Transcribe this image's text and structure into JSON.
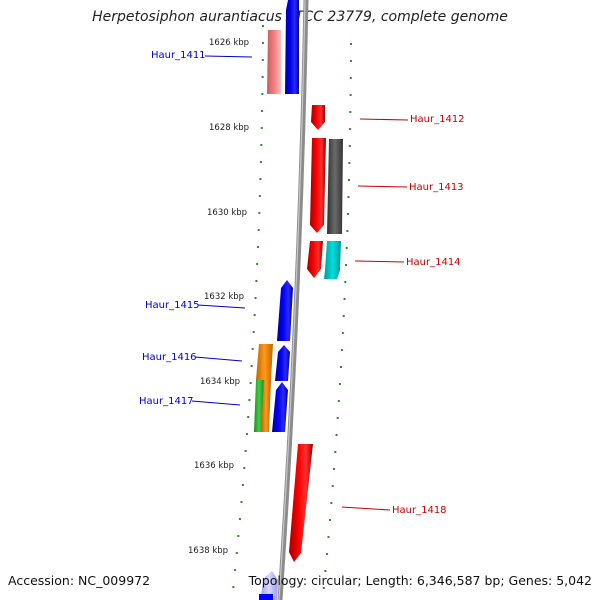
{
  "title": "Herpetosiphon aurantiacus ATCC 23779, complete genome",
  "accession": "Accession: NC_009972",
  "summary": "Topology: circular; Length: 6,346,587 bp; Genes: 5,042",
  "scale_labels": [
    "1626 kbp",
    "1628 kbp",
    "1630 kbp",
    "1632 kbp",
    "1634 kbp",
    "1636 kbp",
    "1638 kbp"
  ],
  "colors": {
    "backbone": "#8c8c8c",
    "tick": "#2e8b2e",
    "reverse_label": "#0000cc",
    "forward_label": "#cc0000"
  },
  "genes": [
    {
      "name": "Haur_1411",
      "strand": "reverse",
      "color": "#0000ff"
    },
    {
      "name": "Haur_1412",
      "strand": "forward",
      "color": "#ff0000"
    },
    {
      "name": "Haur_1413",
      "strand": "forward",
      "color": "#ff0000"
    },
    {
      "name": "Haur_1414",
      "strand": "forward",
      "color": "#ff0000"
    },
    {
      "name": "Haur_1415",
      "strand": "reverse",
      "color": "#0000ff"
    },
    {
      "name": "Haur_1416",
      "strand": "reverse",
      "color": "#0000ff"
    },
    {
      "name": "Haur_1417",
      "strand": "reverse",
      "color": "#0000ff"
    },
    {
      "name": "Haur_1418",
      "strand": "forward",
      "color": "#ff0000"
    }
  ],
  "annotation_bars": [
    {
      "name": "pink-annotation",
      "color": "#f08080"
    },
    {
      "name": "gray-annotation",
      "color": "#555555"
    },
    {
      "name": "cyan-annotation",
      "color": "#00c8c8"
    },
    {
      "name": "orange-annotation",
      "color": "#ff8c00"
    },
    {
      "name": "green-annotation",
      "color": "#33bb33"
    },
    {
      "name": "orange-annotation-2",
      "color": "#ff8c00"
    }
  ]
}
